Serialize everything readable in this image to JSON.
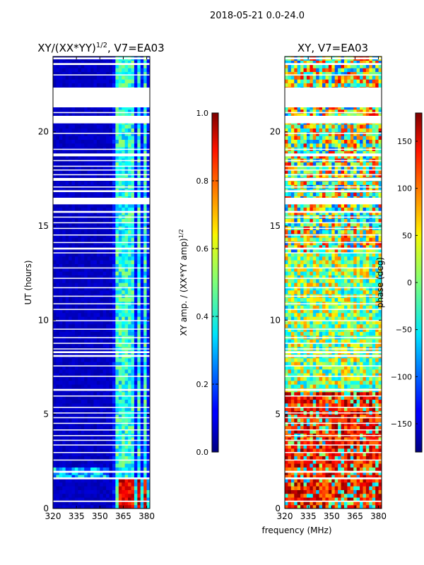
{
  "figure": {
    "suptitle": "2018-05-21 0.0-24.0",
    "shared_xlabel": "frequency (MHz)"
  },
  "chart_data": [
    {
      "type": "heatmap",
      "title_main": "XY/(XX*YY)",
      "title_exp": "1/2",
      "title_suffix": ", V7=EA03",
      "xlabel": "",
      "ylabel": "UT (hours)",
      "xlim": [
        320,
        382
      ],
      "ylim": [
        0,
        24
      ],
      "xticks": [
        320,
        335,
        350,
        365,
        380
      ],
      "yticks": [
        0,
        5,
        10,
        15,
        20
      ],
      "cmap": "jet",
      "colorbar": {
        "label_main": "XY amp. / (XX*YY amp)",
        "label_exp": "1/2",
        "range": [
          0.0,
          1.0
        ],
        "ticks": [
          "0.0",
          "0.2",
          "0.4",
          "0.6",
          "0.8",
          "1.0"
        ]
      },
      "description": "normalized cross-correlation amplitude; mostly low (~0.05) with bright channels near 360-380 MHz and high values at 365-380 MHz for UT 0-1.5 h"
    },
    {
      "type": "heatmap",
      "title_main": "XY, V7=EA03",
      "xlabel": "",
      "ylabel": "",
      "xlim": [
        320,
        382
      ],
      "ylim": [
        0,
        24
      ],
      "xticks": [
        320,
        335,
        350,
        365,
        380
      ],
      "yticks": [
        0,
        5,
        10,
        15,
        20
      ],
      "cmap": "jet",
      "colorbar": {
        "label_main": "phase (deg)",
        "range": [
          -180,
          180
        ],
        "ticks": [
          "150",
          "100",
          "50",
          "0",
          "−50",
          "−100",
          "−150"
        ]
      },
      "description": "cross-correlation phase; noisy with red/orange regions at low UT and green/cyan/yellow mixture at higher UT"
    }
  ],
  "flagged_intervals_hours": [
    [
      0.35,
      0.42
    ],
    [
      1.55,
      1.65
    ],
    [
      1.9,
      2.0
    ],
    [
      2.55,
      2.6
    ],
    [
      2.95,
      3.0
    ],
    [
      3.35,
      3.4
    ],
    [
      3.6,
      3.65
    ],
    [
      3.85,
      3.9
    ],
    [
      4.15,
      4.2
    ],
    [
      4.5,
      4.55
    ],
    [
      4.8,
      4.85
    ],
    [
      5.05,
      5.1
    ],
    [
      5.35,
      5.4
    ],
    [
      5.95,
      6.0
    ],
    [
      6.25,
      6.35
    ],
    [
      7.0,
      7.05
    ],
    [
      7.55,
      7.6
    ],
    [
      8.05,
      8.15
    ],
    [
      8.25,
      8.35
    ],
    [
      8.45,
      8.5
    ],
    [
      8.75,
      8.8
    ],
    [
      9.05,
      9.1
    ],
    [
      9.5,
      9.55
    ],
    [
      9.95,
      10.0
    ],
    [
      10.55,
      10.6
    ],
    [
      10.85,
      10.9
    ],
    [
      11.25,
      11.3
    ],
    [
      11.7,
      11.75
    ],
    [
      12.2,
      12.25
    ],
    [
      12.75,
      12.8
    ],
    [
      13.55,
      13.6
    ],
    [
      13.75,
      13.85
    ],
    [
      14.1,
      14.15
    ],
    [
      14.5,
      14.55
    ],
    [
      14.85,
      14.9
    ],
    [
      15.15,
      15.2
    ],
    [
      15.45,
      15.5
    ],
    [
      15.7,
      15.8
    ],
    [
      16.15,
      16.5
    ],
    [
      16.8,
      16.9
    ],
    [
      17.05,
      17.1
    ],
    [
      17.4,
      17.55
    ],
    [
      17.7,
      17.75
    ],
    [
      17.95,
      18.0
    ],
    [
      18.15,
      18.2
    ],
    [
      18.45,
      18.5
    ],
    [
      18.7,
      18.85
    ],
    [
      19.05,
      19.1
    ],
    [
      19.9,
      19.95
    ],
    [
      20.45,
      20.85
    ],
    [
      21.0,
      21.05
    ],
    [
      21.3,
      22.35
    ],
    [
      23.0,
      23.05
    ],
    [
      23.55,
      23.65
    ],
    [
      23.85,
      23.95
    ]
  ],
  "bright_channels_mhz": [
    [
      360.5,
      362.5
    ],
    [
      365.5,
      367
    ],
    [
      369.5,
      371
    ],
    [
      374,
      375.5
    ],
    [
      378.5,
      380
    ]
  ]
}
